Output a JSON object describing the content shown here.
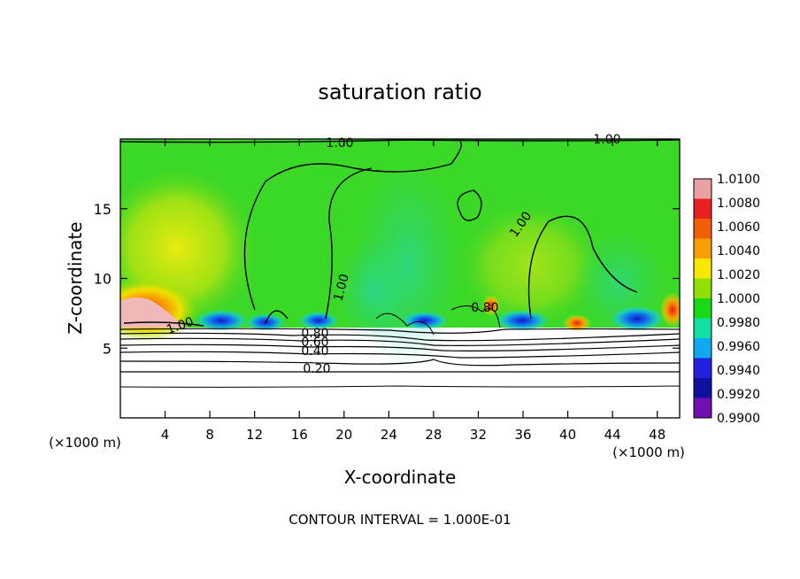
{
  "chart_data": {
    "type": "heatmap",
    "title": "saturation ratio",
    "xlabel": "X-coordinate",
    "ylabel": "Z-coordinate",
    "x_unit_left": "(×1000 m)",
    "x_unit_right": "(×1000 m)",
    "xlim": [
      0,
      50
    ],
    "ylim": [
      0,
      20
    ],
    "x_ticks": [
      "4",
      "8",
      "12",
      "16",
      "20",
      "24",
      "28",
      "32",
      "36",
      "40",
      "44",
      "48"
    ],
    "x_tick_values": [
      4,
      8,
      12,
      16,
      20,
      24,
      28,
      32,
      36,
      40,
      44,
      48
    ],
    "y_ticks": [
      "5",
      "10",
      "15"
    ],
    "y_tick_values": [
      5,
      10,
      15
    ],
    "colorbar": {
      "labels": [
        "1.0100",
        "1.0080",
        "1.0060",
        "1.0040",
        "1.0020",
        "1.0000",
        "0.9980",
        "0.9960",
        "0.9940",
        "0.9920",
        "0.9900"
      ],
      "colors": [
        "#e8a0a0",
        "#e82020",
        "#f06000",
        "#f8a000",
        "#f8e800",
        "#90e000",
        "#18d818",
        "#10e0a0",
        "#10a8f0",
        "#2020e0",
        "#1010a0",
        "#7010b0"
      ]
    },
    "contour_labels": [
      "1.00",
      "1.00",
      "1.00",
      "1.00",
      "1.00",
      "0.80",
      "0.60",
      "0.40",
      "0.20",
      "0.80"
    ],
    "contour_levels": [
      0.2,
      0.4,
      0.6,
      0.8,
      1.0
    ],
    "footer": "CONTOUR INTERVAL = 1.000E-01"
  }
}
